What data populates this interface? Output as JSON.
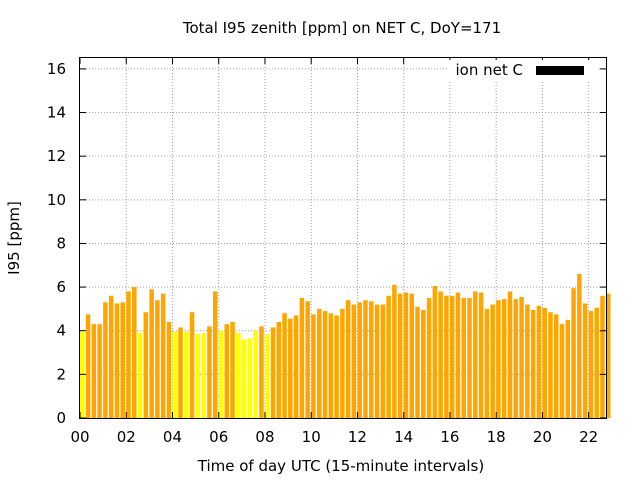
{
  "chart_data": {
    "type": "bar",
    "title": "Total I95 zenith [ppm] on NET C, DoY=171",
    "xlabel": "Time of day UTC (15-minute intervals)",
    "ylabel": "I95 [ppm]",
    "xlim": [
      0,
      22.75
    ],
    "ylim": [
      0,
      16.5
    ],
    "xticks": [
      "00",
      "02",
      "04",
      "06",
      "08",
      "10",
      "12",
      "14",
      "16",
      "18",
      "20",
      "22"
    ],
    "yticks": [
      "0",
      "2",
      "4",
      "6",
      "8",
      "10",
      "12",
      "14",
      "16"
    ],
    "grid": true,
    "legend": {
      "position": "top-right",
      "entries": [
        {
          "label": "ion net C",
          "color": "#000000"
        }
      ]
    },
    "colors": {
      "normal": "#ffa500",
      "low": "#ffff00"
    },
    "x_step_hours": 0.25,
    "values": [
      3.95,
      4.75,
      4.3,
      4.3,
      5.3,
      5.6,
      5.25,
      5.3,
      5.8,
      6.0,
      3.9,
      4.85,
      5.9,
      5.4,
      5.7,
      4.4,
      3.95,
      4.15,
      3.95,
      4.85,
      3.85,
      3.9,
      4.2,
      5.8,
      4.0,
      4.3,
      4.4,
      3.9,
      3.6,
      3.65,
      4.0,
      4.2,
      3.85,
      4.15,
      4.4,
      4.8,
      4.55,
      4.7,
      5.5,
      5.35,
      4.75,
      5.0,
      4.9,
      4.8,
      4.7,
      5.0,
      5.4,
      5.2,
      5.3,
      5.4,
      5.35,
      5.2,
      5.2,
      5.6,
      6.1,
      5.7,
      5.75,
      5.7,
      5.1,
      4.95,
      5.5,
      6.05,
      5.8,
      5.6,
      5.6,
      5.75,
      5.5,
      5.5,
      5.8,
      5.75,
      5.0,
      5.2,
      5.4,
      5.45,
      5.8,
      5.45,
      5.55,
      5.2,
      4.95,
      5.15,
      5.05,
      4.85,
      4.75,
      4.3,
      4.5,
      5.95,
      6.6,
      5.25,
      4.9,
      5.05,
      5.6,
      5.7
    ],
    "low_flags": [
      1,
      0,
      0,
      0,
      0,
      0,
      0,
      0,
      0,
      0,
      1,
      0,
      0,
      0,
      0,
      0,
      1,
      0,
      1,
      0,
      1,
      1,
      0,
      0,
      1,
      0,
      0,
      1,
      1,
      1,
      1,
      0,
      1,
      0,
      0,
      0,
      0,
      0,
      0,
      0,
      0,
      0,
      0,
      0,
      0,
      0,
      0,
      0,
      0,
      0,
      0,
      0,
      0,
      0,
      0,
      0,
      0,
      0,
      0,
      0,
      0,
      0,
      0,
      0,
      0,
      0,
      0,
      0,
      0,
      0,
      0,
      0,
      0,
      0,
      0,
      0,
      0,
      0,
      0,
      0,
      0,
      0,
      0,
      0,
      0,
      0,
      0,
      0,
      0,
      0,
      0,
      0
    ]
  }
}
